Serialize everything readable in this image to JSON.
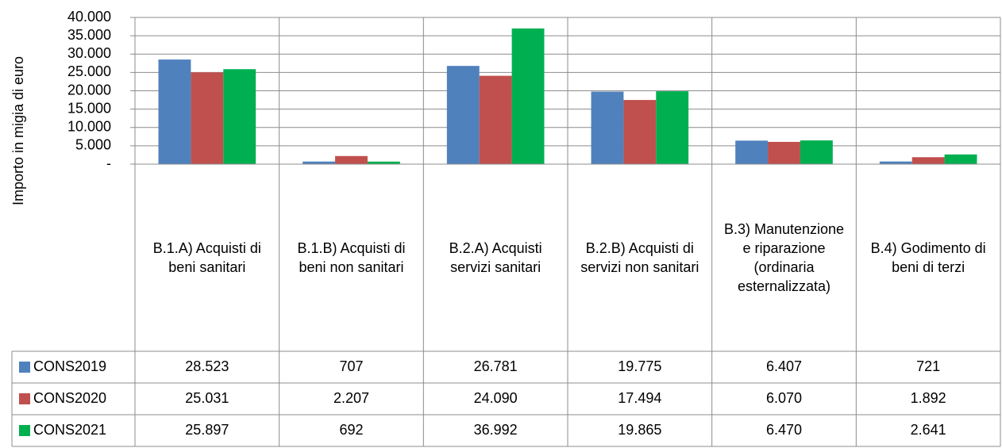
{
  "chart_data": {
    "type": "bar",
    "y_label": "Importo in migia di euro",
    "categories": [
      "B.1.A) Acquisti di beni sanitari",
      "B.1.B) Acquisti di beni non sanitari",
      "B.2.A) Acquisti servizi sanitari",
      "B.2.B) Acquisti di servizi non sanitari",
      "B.3) Manutenzione e riparazione (ordinaria esternalizzata)",
      "B.4) Godimento di beni di terzi"
    ],
    "series": [
      {
        "name": "CONS2019",
        "color": "#4f81bd",
        "values": [
          28523,
          707,
          26781,
          19775,
          6407,
          721
        ],
        "value_labels": [
          "28.523",
          "707",
          "26.781",
          "19.775",
          "6.407",
          "721"
        ]
      },
      {
        "name": "CONS2020",
        "color": "#c0504d",
        "values": [
          25031,
          2207,
          24090,
          17494,
          6070,
          1892
        ],
        "value_labels": [
          "25.031",
          "2.207",
          "24.090",
          "17.494",
          "6.070",
          "1.892"
        ]
      },
      {
        "name": "CONS2021",
        "color": "#00b050",
        "values": [
          25897,
          692,
          36992,
          19865,
          6470,
          2641
        ],
        "value_labels": [
          "25.897",
          "692",
          "36.992",
          "19.865",
          "6.470",
          "2.641"
        ]
      }
    ],
    "ylim": [
      0,
      40000
    ],
    "yticks": [
      {
        "value": 0,
        "label": "-"
      },
      {
        "value": 5000,
        "label": "5.000"
      },
      {
        "value": 10000,
        "label": "10.000"
      },
      {
        "value": 15000,
        "label": "15.000"
      },
      {
        "value": 20000,
        "label": "20.000"
      },
      {
        "value": 25000,
        "label": "25.000"
      },
      {
        "value": 30000,
        "label": "30.000"
      },
      {
        "value": 35000,
        "label": "35.000"
      },
      {
        "value": 40000,
        "label": "40.000"
      }
    ],
    "grid": true
  }
}
